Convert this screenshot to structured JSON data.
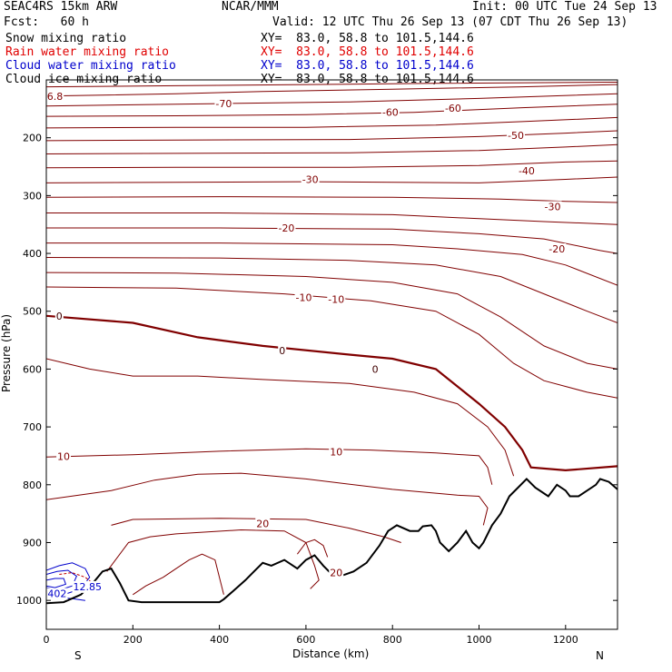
{
  "header": {
    "model": "SEAC4RS 15km ARW",
    "center": "NCAR/MMM",
    "init": "Init: 00 UTC Tue 24 Sep 13",
    "fcst": "Fcst:   60 h",
    "valid": "Valid: 12 UTC Thu 26 Sep 13 (07 CDT Thu 26 Sep 13)"
  },
  "fields": [
    {
      "name": "Snow mixing ratio",
      "xy": "XY=  83.0, 58.8 to 101.5,144.6",
      "color": "#000000"
    },
    {
      "name": "Rain water mixing ratio",
      "xy": "XY=  83.0, 58.8 to 101.5,144.6",
      "color": "#e00000"
    },
    {
      "name": "Cloud water mixing ratio",
      "xy": "XY=  83.0, 58.8 to 101.5,144.6",
      "color": "#0000cc"
    },
    {
      "name": "Cloud ice mixing ratio",
      "xy": "XY=  83.0, 58.8 to 101.5,144.6",
      "color": "#000000"
    }
  ],
  "chart_data": {
    "type": "line",
    "xlabel": "Distance (km)",
    "ylabel": "Pressure (hPa)",
    "xlim": [
      0,
      1320
    ],
    "ylim": [
      1050,
      100
    ],
    "xticks": [
      0,
      200,
      400,
      600,
      800,
      1000,
      1200
    ],
    "yticks": [
      200,
      300,
      400,
      500,
      600,
      700,
      800,
      900,
      1000
    ],
    "end_labels": {
      "left": "S",
      "right": "N"
    },
    "colors": {
      "isotherm": "#800000",
      "terrain": "#000000",
      "cloud": "#0000cc",
      "rain": "#c00000"
    },
    "isotherm_labels": [
      {
        "text": "6.8",
        "x": 20,
        "p": 128
      },
      {
        "text": "-70",
        "x": 410,
        "p": 141
      },
      {
        "text": "-60",
        "x": 795,
        "p": 156
      },
      {
        "text": "-60",
        "x": 940,
        "p": 149
      },
      {
        "text": "-50",
        "x": 1085,
        "p": 196
      },
      {
        "text": "-40",
        "x": 1110,
        "p": 257
      },
      {
        "text": "-30",
        "x": 610,
        "p": 272
      },
      {
        "text": "-30",
        "x": 1170,
        "p": 319
      },
      {
        "text": "-20",
        "x": 555,
        "p": 356
      },
      {
        "text": "-20",
        "x": 1180,
        "p": 392
      },
      {
        "text": "-10",
        "x": 595,
        "p": 476
      },
      {
        "text": "-10",
        "x": 670,
        "p": 479
      },
      {
        "text": "0",
        "x": 30,
        "p": 508
      },
      {
        "text": "0",
        "x": 545,
        "p": 568
      },
      {
        "text": "0",
        "x": 760,
        "p": 600
      },
      {
        "text": "10",
        "x": 40,
        "p": 751
      },
      {
        "text": "10",
        "x": 670,
        "p": 743
      },
      {
        "text": "20",
        "x": 500,
        "p": 867
      },
      {
        "text": "20",
        "x": 670,
        "p": 952
      },
      {
        "text": "12.85",
        "x": 95,
        "p": 976
      },
      {
        "text": "402",
        "x": 25,
        "p": 988
      }
    ]
  }
}
